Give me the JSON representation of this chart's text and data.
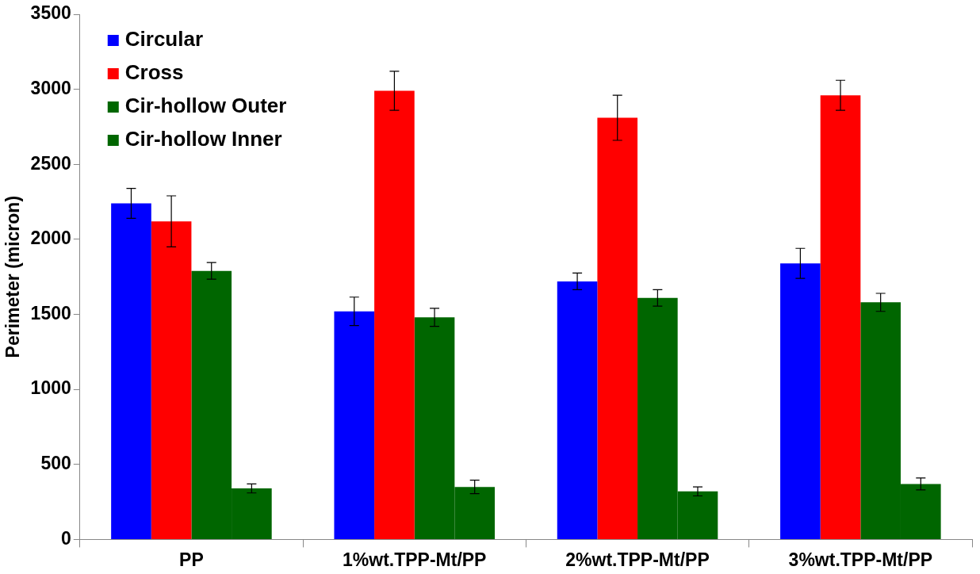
{
  "chart_data": {
    "type": "bar",
    "ylabel": "Perimeter (micron)",
    "categories": [
      "PP",
      "1%wt.TPP-Mt/PP",
      "2%wt.TPP-Mt/PP",
      "3%wt.TPP-Mt/PP"
    ],
    "series": [
      {
        "name": "Circular",
        "color": "#0000ff",
        "values": [
          2240,
          1520,
          1720,
          1840
        ],
        "errors": [
          100,
          95,
          55,
          100
        ]
      },
      {
        "name": "Cross",
        "color": "#ff0000",
        "values": [
          2120,
          2990,
          2810,
          2960
        ],
        "errors": [
          170,
          130,
          150,
          100
        ]
      },
      {
        "name": "Cir-hollow Outer",
        "color": "#006600",
        "values": [
          1790,
          1480,
          1610,
          1580
        ],
        "errors": [
          55,
          60,
          55,
          60
        ]
      },
      {
        "name": "Cir-hollow Inner",
        "color": "#006600",
        "values": [
          340,
          350,
          320,
          370
        ],
        "errors": [
          30,
          45,
          30,
          40
        ]
      }
    ],
    "ylim": [
      0,
      3500
    ],
    "yticks": [
      0,
      500,
      1000,
      1500,
      2000,
      2500,
      3000,
      3500
    ],
    "grid": false,
    "legend": "top left"
  }
}
